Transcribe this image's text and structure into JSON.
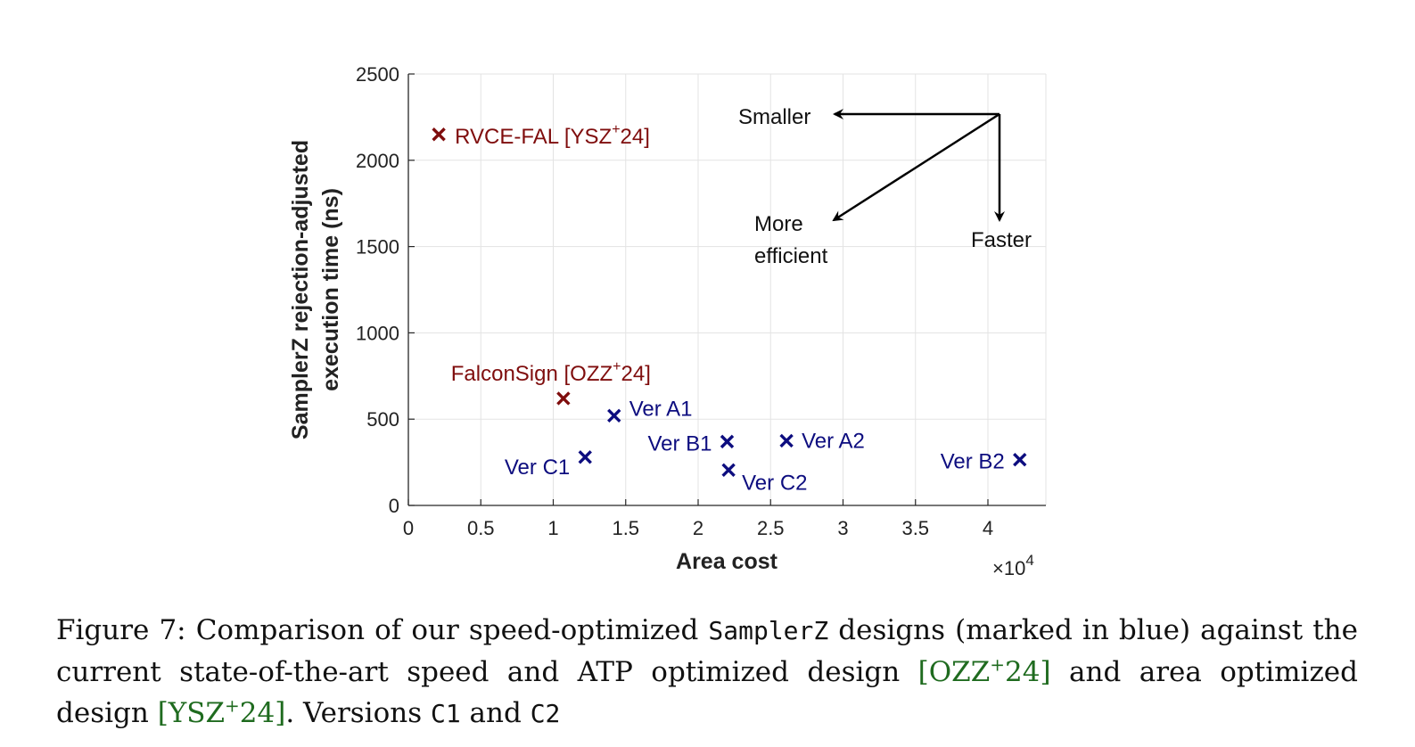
{
  "chart_data": {
    "type": "scatter",
    "xlabel": "Area cost",
    "ylabel_line1": "SamplerZ rejection-adjusted",
    "ylabel_line2": "execution time (ns)",
    "x_multiplier": "×10",
    "x_multiplier_exp": "4",
    "xlim": [
      0,
      4.4
    ],
    "ylim": [
      0,
      2500
    ],
    "x_scale_note": "values in units of 10^4",
    "xticks": [
      0,
      0.5,
      1,
      1.5,
      2,
      2.5,
      3,
      3.5,
      4
    ],
    "xtick_labels": [
      "0",
      "0.5",
      "1",
      "1.5",
      "2",
      "2.5",
      "3",
      "3.5",
      "4"
    ],
    "yticks": [
      0,
      500,
      1000,
      1500,
      2000,
      2500
    ],
    "ytick_labels": [
      "0",
      "500",
      "1000",
      "1500",
      "2000",
      "2500"
    ],
    "grid": true,
    "series": [
      {
        "color": "#7f0d0d",
        "points": [
          {
            "label": "RVCE-FAL [YSZ",
            "sup": "+",
            "label_end": "24]",
            "x": 0.21,
            "y": 2150
          },
          {
            "label": "FalconSign [OZZ",
            "sup": "+",
            "label_end": "24]",
            "x": 1.07,
            "y": 620
          }
        ]
      },
      {
        "color": "#0d0d7f",
        "points": [
          {
            "label": "Ver A1",
            "sup": "",
            "label_end": "",
            "x": 1.42,
            "y": 520
          },
          {
            "label": "Ver C1",
            "sup": "",
            "label_end": "",
            "x": 1.22,
            "y": 280
          },
          {
            "label": "Ver B1",
            "sup": "",
            "label_end": "",
            "x": 2.2,
            "y": 370
          },
          {
            "label": "Ver C2",
            "sup": "",
            "label_end": "",
            "x": 2.21,
            "y": 205
          },
          {
            "label": "Ver A2",
            "sup": "",
            "label_end": "",
            "x": 2.61,
            "y": 375
          },
          {
            "label": "Ver B2",
            "sup": "",
            "label_end": "",
            "x": 4.22,
            "y": 265
          }
        ]
      }
    ],
    "annotations": {
      "smaller": "Smaller",
      "more": "More",
      "efficient": "efficient",
      "faster": "Faster"
    }
  },
  "caption": {
    "part1": "Figure 7: Comparison of our speed-optimized ",
    "code1": "SamplerZ",
    "part2": " designs (marked in blue) against the current state-of-the-art speed and ATP optimized design ",
    "cite1": "[OZZ",
    "cite1_sup": "+",
    "cite1_end": "24]",
    "part3": " and area optimized design ",
    "cite2": "[YSZ",
    "cite2_sup": "+",
    "cite2_end": "24]",
    "part4": ". Versions ",
    "code2": "C1",
    "part5": " and ",
    "code3": "C2"
  }
}
